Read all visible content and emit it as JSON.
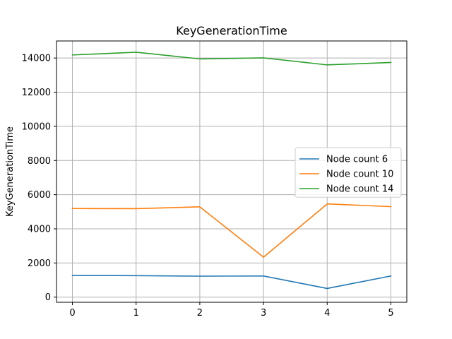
{
  "chart_data": {
    "type": "line",
    "title": "KeyGenerationTime",
    "xlabel": "",
    "ylabel": "KeyGenerationTime",
    "x": [
      0,
      1,
      2,
      3,
      4,
      5
    ],
    "xlim": [
      -0.25,
      5.25
    ],
    "ylim": [
      -300,
      15000
    ],
    "xticks": [
      0,
      1,
      2,
      3,
      4,
      5
    ],
    "yticks": [
      0,
      2000,
      4000,
      6000,
      8000,
      10000,
      12000,
      14000
    ],
    "grid": true,
    "legend_position": "center-right",
    "series": [
      {
        "name": "Node count 6",
        "color": "#1f77b4",
        "values": [
          1270,
          1260,
          1230,
          1240,
          510,
          1240
        ]
      },
      {
        "name": "Node count 10",
        "color": "#ff7f0e",
        "values": [
          5190,
          5180,
          5290,
          2340,
          5460,
          5300
        ]
      },
      {
        "name": "Node count 14",
        "color": "#2ca02c",
        "values": [
          14180,
          14340,
          13950,
          14010,
          13600,
          13740
        ]
      }
    ]
  }
}
